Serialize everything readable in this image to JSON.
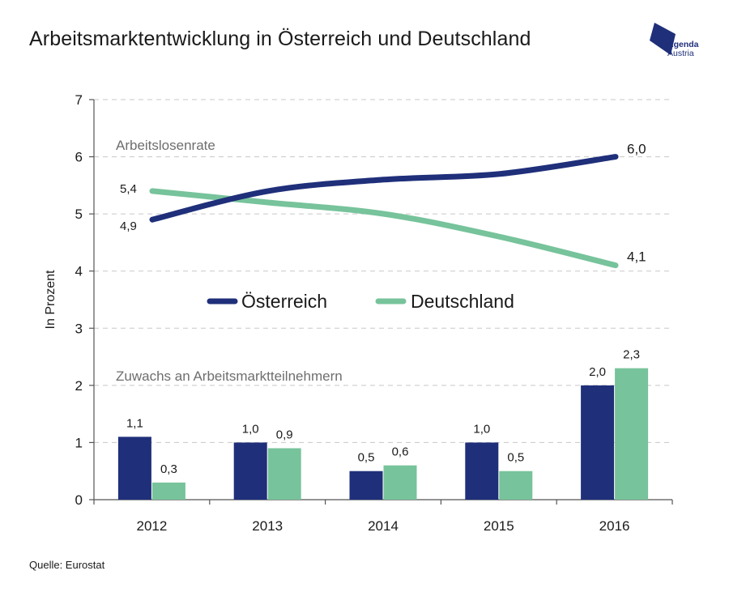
{
  "title": "Arbeitsmarktentwicklung in Österreich und Deutschland",
  "logo": {
    "line1": "Agenda",
    "line2": "Austria",
    "color": "#1f2f7a"
  },
  "source": "Quelle: Eurostat",
  "colors": {
    "austria": "#1f2f7a",
    "germany": "#77c39b",
    "grid": "#c8c8c8",
    "annotation": "#6e6e6e"
  },
  "chart_data": {
    "type": "line+bar",
    "ylabel": "In Prozent",
    "ylim": [
      0,
      7
    ],
    "yticks": [
      "0",
      "1",
      "2",
      "3",
      "4",
      "5",
      "6",
      "7"
    ],
    "categories": [
      "2012",
      "2013",
      "2014",
      "2015",
      "2016"
    ],
    "grid": true,
    "legend": {
      "position": "center",
      "entries": [
        "Österreich",
        "Deutschland"
      ]
    },
    "line_panel": {
      "label": "Arbeitslosenrate",
      "series": [
        {
          "name": "Österreich",
          "values": [
            4.9,
            5.4,
            5.6,
            5.7,
            6.0
          ]
        },
        {
          "name": "Deutschland",
          "values": [
            5.4,
            5.2,
            5.0,
            4.6,
            4.1
          ]
        }
      ],
      "end_labels": {
        "Österreich": {
          "start": "4,9",
          "end": "6,0"
        },
        "Deutschland": {
          "start": "5,4",
          "end": "4,1"
        }
      }
    },
    "bar_panel": {
      "label": "Zuwachs an Arbeitsmarktteilnehmern",
      "series": [
        {
          "name": "Österreich",
          "values": [
            1.1,
            1.0,
            0.5,
            1.0,
            2.0
          ],
          "labels": [
            "1,1",
            "1,0",
            "0,5",
            "1,0",
            "2,0"
          ]
        },
        {
          "name": "Deutschland",
          "values": [
            0.3,
            0.9,
            0.6,
            0.5,
            2.3
          ],
          "labels": [
            "0,3",
            "0,9",
            "0,6",
            "0,5",
            "2,3"
          ]
        }
      ]
    }
  }
}
